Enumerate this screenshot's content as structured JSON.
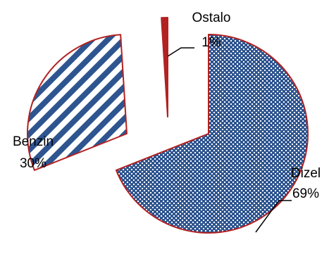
{
  "chart_data": {
    "type": "pie",
    "exploded": true,
    "slices": [
      {
        "name": "Dizel",
        "value": 69,
        "label_pct": "69%",
        "pattern": "crosshatch-blue"
      },
      {
        "name": "Benzin",
        "value": 30,
        "label_pct": "30%",
        "pattern": "diagonal-stripes-blue"
      },
      {
        "name": "Ostalo",
        "value": 1,
        "label_pct": "1%",
        "pattern": "solid-red"
      }
    ],
    "colors": {
      "fill": "#2e5590",
      "border": "#b22222",
      "background": "#ffffff"
    }
  }
}
